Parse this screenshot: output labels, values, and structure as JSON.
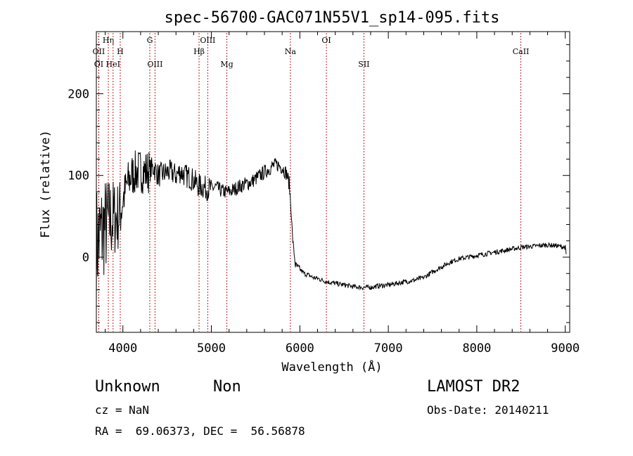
{
  "chart_data": {
    "type": "line",
    "title": "spec-56700-GAC071N55V1_sp14-095.fits",
    "xlabel": "Wavelength (Å)",
    "ylabel": "Flux (relative)",
    "xlim": [
      3700,
      9050
    ],
    "ylim": [
      -92,
      276
    ],
    "x_ticks": [
      "4000",
      "5000",
      "6000",
      "7000",
      "8000",
      "9000"
    ],
    "y_ticks": [
      "0",
      "100",
      "200"
    ],
    "x_tick_values": [
      4000,
      5000,
      6000,
      7000,
      8000,
      9000
    ],
    "y_tick_values": [
      0,
      100,
      200
    ],
    "grid": false,
    "series": [
      {
        "color": "#000000",
        "x": [
          3700,
          3740,
          3780,
          3820,
          3860,
          3900,
          3950,
          4000,
          4050,
          4100,
          4150,
          4200,
          4250,
          4300,
          4350,
          4400,
          4450,
          4500,
          4550,
          4600,
          4650,
          4700,
          4750,
          4800,
          4850,
          4900,
          4950,
          5000,
          5050,
          5100,
          5150,
          5200,
          5250,
          5300,
          5350,
          5400,
          5450,
          5500,
          5550,
          5600,
          5650,
          5700,
          5750,
          5800,
          5850,
          5880,
          5900,
          5920,
          5950,
          6000,
          6050,
          6100,
          6150,
          6200,
          6300,
          6400,
          6500,
          6600,
          6700,
          6800,
          6900,
          7000,
          7100,
          7200,
          7300,
          7400,
          7500,
          7600,
          7700,
          7800,
          7900,
          8000,
          8100,
          8200,
          8300,
          8400,
          8500,
          8600,
          8700,
          8800,
          8900,
          8950,
          9000,
          9010
        ],
        "y": [
          15,
          25,
          35,
          40,
          45,
          48,
          50,
          70,
          90,
          100,
          104,
          106,
          104,
          106,
          110,
          100,
          102,
          104,
          104,
          100,
          105,
          100,
          98,
          94,
          88,
          86,
          84,
          84,
          86,
          82,
          80,
          80,
          82,
          86,
          88,
          90,
          92,
          96,
          100,
          104,
          108,
          112,
          113,
          110,
          102,
          90,
          60,
          20,
          -10,
          -15,
          -20,
          -22,
          -25,
          -26,
          -30,
          -32,
          -34,
          -36,
          -37,
          -37,
          -35,
          -34,
          -32,
          -30,
          -28,
          -25,
          -18,
          -12,
          -6,
          -2,
          0,
          2,
          4,
          6,
          8,
          10,
          12,
          13,
          14,
          15,
          14,
          13,
          12,
          2
        ]
      }
    ],
    "lines": [
      {
        "label": "OII",
        "wavelength": 3727,
        "row": 2
      },
      {
        "label": "OI",
        "wavelength": 3727,
        "row": 3
      },
      {
        "label": "Hη",
        "wavelength": 3835,
        "row": 1
      },
      {
        "label": "HeI",
        "wavelength": 3889,
        "row": 3
      },
      {
        "label": "H",
        "wavelength": 3970,
        "row": 2
      },
      {
        "label": "G",
        "wavelength": 4304,
        "row": 1
      },
      {
        "label": "OIII",
        "wavelength": 4363,
        "row": 3
      },
      {
        "label": "Hβ",
        "wavelength": 4861,
        "row": 2
      },
      {
        "label": "OIII",
        "wavelength": 4959,
        "row": 1
      },
      {
        "label": "Mg",
        "wavelength": 5175,
        "row": 3
      },
      {
        "label": "Na",
        "wavelength": 5893,
        "row": 2
      },
      {
        "label": "OI",
        "wavelength": 6300,
        "row": 1
      },
      {
        "label": "SII",
        "wavelength": 6724,
        "row": 3
      },
      {
        "label": "CaII",
        "wavelength": 8498,
        "row": 2
      }
    ],
    "line_color": "#b22222"
  },
  "info": {
    "class_label": "Unknown",
    "subclass_label": "Non",
    "survey": "LAMOST DR2",
    "cz": "cz = NaN",
    "obs_date": "Obs-Date: 20140211",
    "radec": "RA =  69.06373, DEC =  56.56878"
  }
}
